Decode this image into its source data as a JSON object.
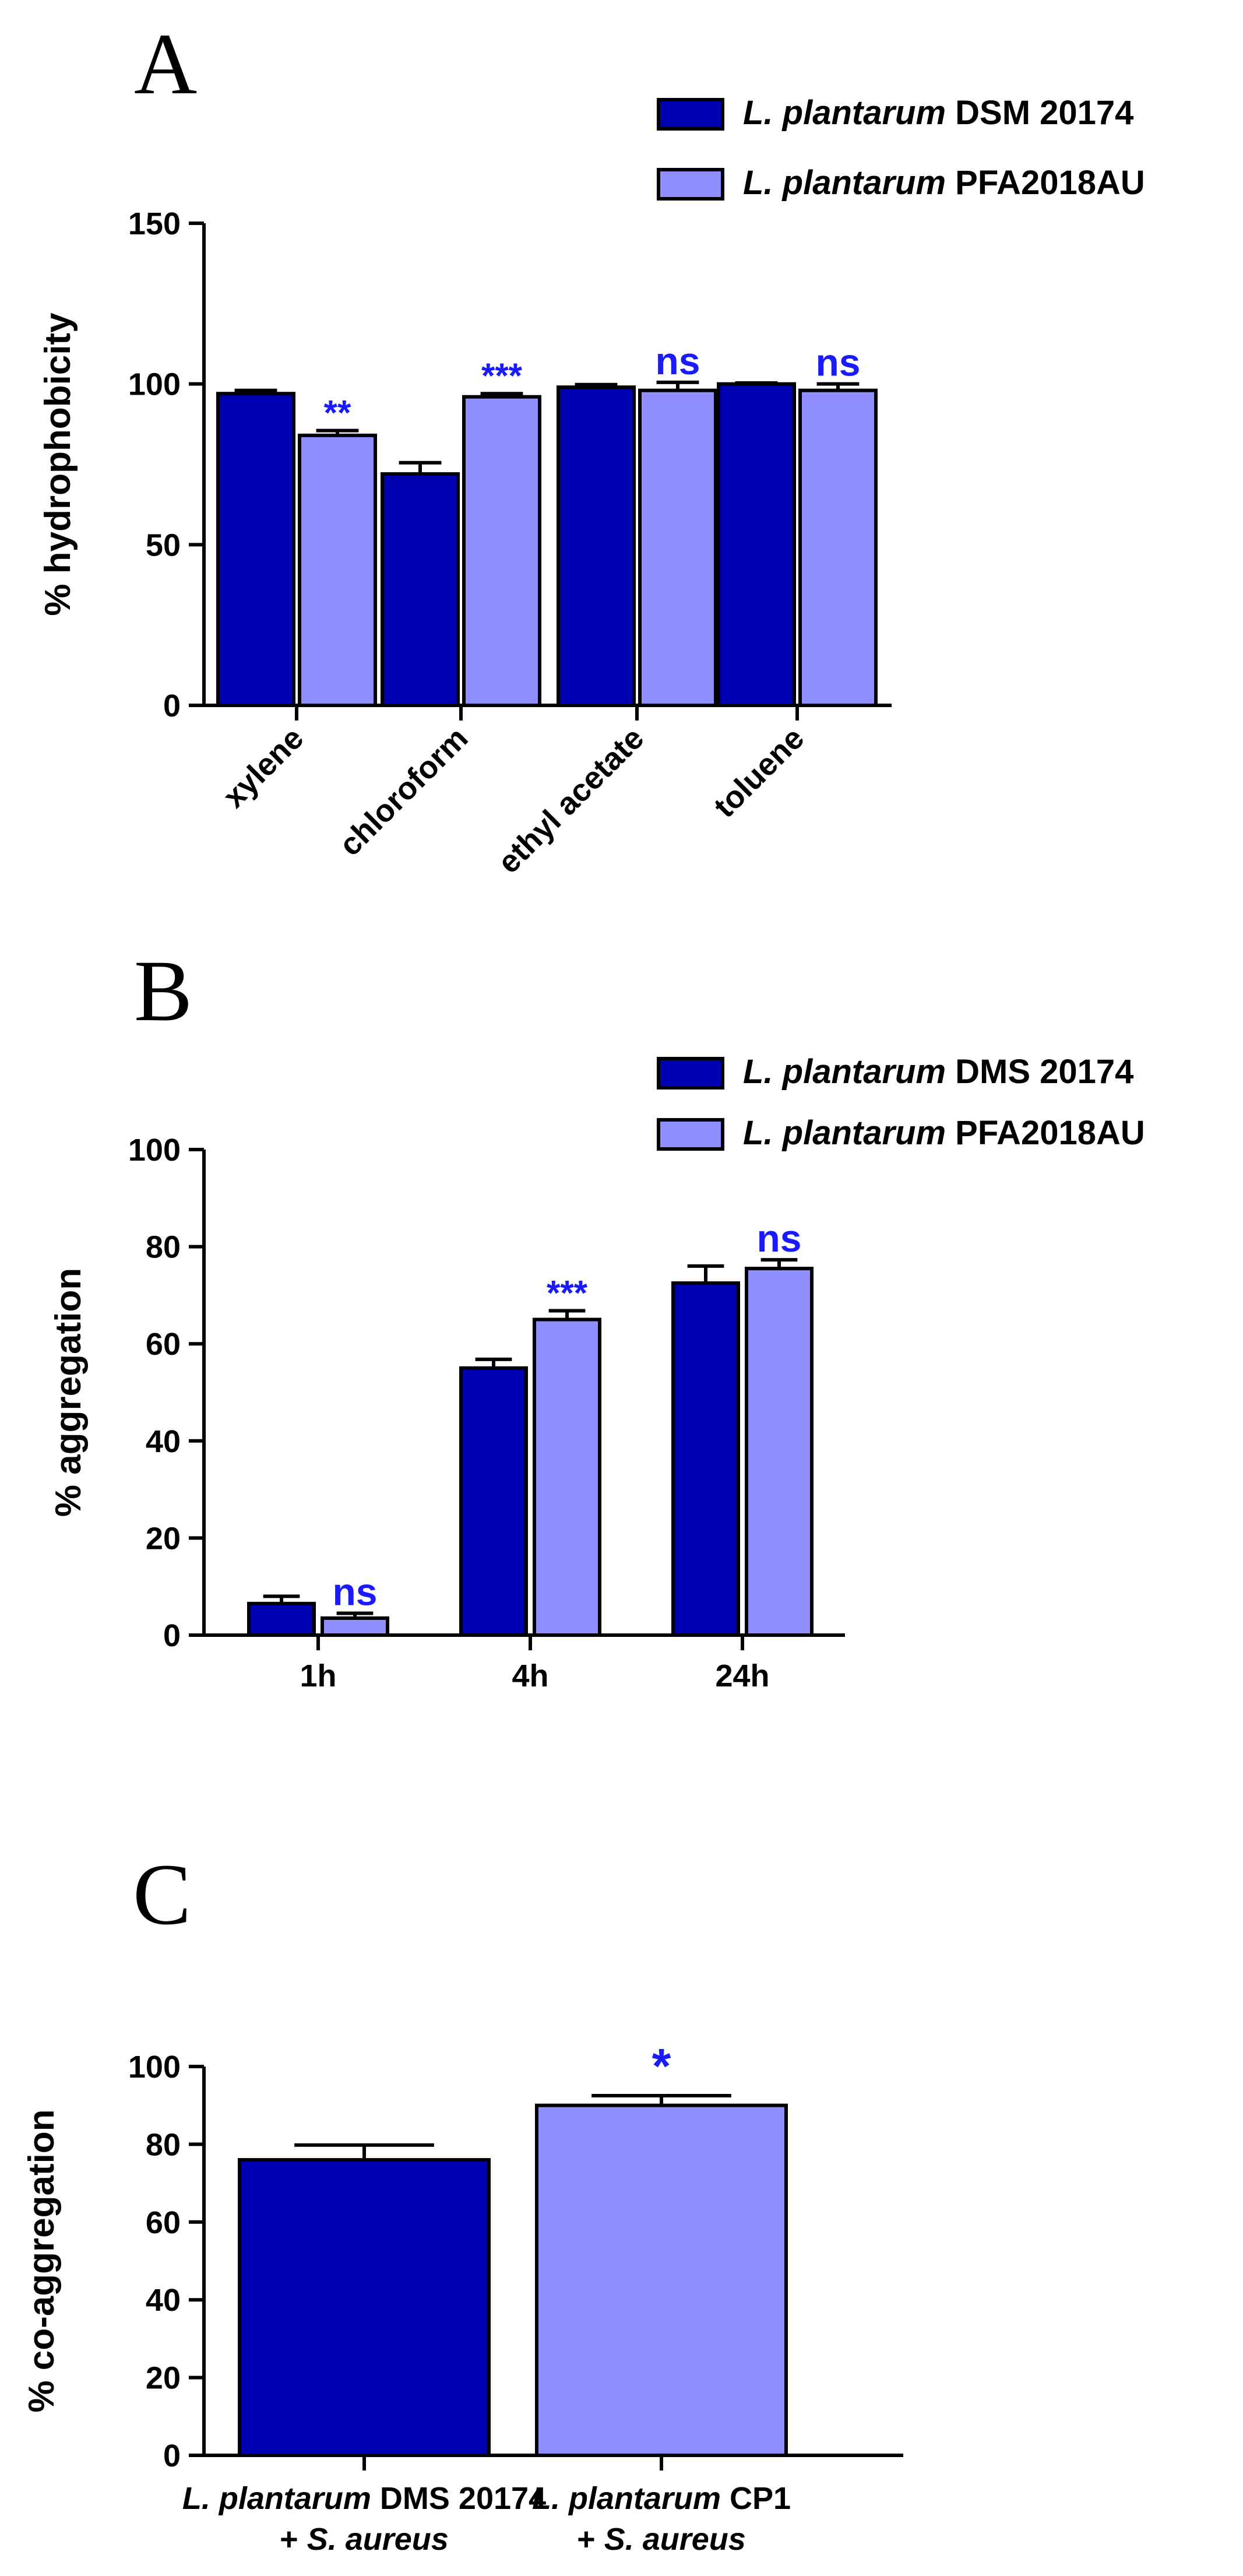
{
  "colors": {
    "dark": "#0000b3",
    "light": "#8f8fff",
    "sig": "#1a1aff"
  },
  "chart_data": [
    {
      "panel": "A",
      "type": "bar",
      "ylabel": "% hydrophobicity",
      "ylim": [
        0,
        150
      ],
      "yticks": [
        0,
        50,
        100,
        150
      ],
      "categories": [
        "xylene",
        "chloroform",
        "ethyl acetate",
        "toluene"
      ],
      "legend": [
        {
          "italic": "L. plantarum",
          "rest": " DSM 20174"
        },
        {
          "italic": "L. plantarum",
          "rest": " PFA2018AU"
        }
      ],
      "series": [
        {
          "name": "L. plantarum DSM 20174",
          "values": [
            97,
            72,
            99,
            100
          ],
          "errors": [
            1,
            3.5,
            0.8,
            0.3
          ]
        },
        {
          "name": "L. plantarum PFA2018AU",
          "values": [
            84,
            96,
            98,
            98
          ],
          "errors": [
            1.5,
            1,
            2.5,
            2
          ]
        }
      ],
      "significance": [
        "**",
        "***",
        "ns",
        "ns"
      ]
    },
    {
      "panel": "B",
      "type": "bar",
      "ylabel": "% aggregation",
      "ylim": [
        0,
        100
      ],
      "yticks": [
        0,
        20,
        40,
        60,
        80,
        100
      ],
      "categories": [
        "1h",
        "4h",
        "24h"
      ],
      "legend": [
        {
          "italic": "L. plantarum",
          "rest": " DMS 20174"
        },
        {
          "italic": "L. plantarum",
          "rest": " PFA2018AU"
        }
      ],
      "series": [
        {
          "name": "L. plantarum DMS 20174",
          "values": [
            6.5,
            55,
            72.5
          ],
          "errors": [
            1.5,
            1.8,
            3.5
          ]
        },
        {
          "name": "L. plantarum PFA2018AU",
          "values": [
            3.5,
            65,
            75.5
          ],
          "errors": [
            1,
            1.8,
            1.8
          ]
        }
      ],
      "significance": [
        "ns",
        "***",
        "ns"
      ]
    },
    {
      "panel": "C",
      "type": "bar",
      "ylabel": "% co-aggregation",
      "ylim": [
        0,
        100
      ],
      "yticks": [
        0,
        20,
        40,
        60,
        80,
        100
      ],
      "categories": [
        {
          "line1_italic": "L. plantarum",
          "line1_rest": " DMS 20174",
          "line2_rest": "+ ",
          "line2_italic": "S. aureus"
        },
        {
          "line1_italic": "L. plantarum",
          "line1_rest": " CP1",
          "line2_rest": "+ ",
          "line2_italic": "S. aureus"
        }
      ],
      "values": [
        76,
        90
      ],
      "errors": [
        3.8,
        2.5
      ],
      "significance": [
        "",
        "*"
      ]
    }
  ]
}
